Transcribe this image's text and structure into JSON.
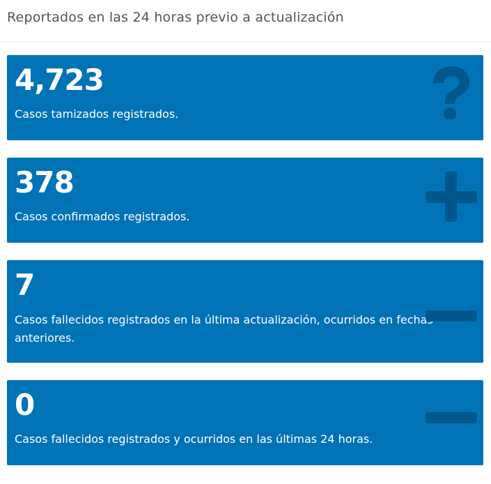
{
  "header": {
    "title": "Reportados en las 24 horas previo a actualización"
  },
  "colors": {
    "card_background": "#0073b7",
    "icon_tint": "#00578c",
    "header_text": "#555555"
  },
  "cards": [
    {
      "value": "4,723",
      "label": "Casos tamizados registrados.",
      "icon": "question-icon"
    },
    {
      "value": "378",
      "label": "Casos confirmados registrados.",
      "icon": "plus-icon"
    },
    {
      "value": "7",
      "label": "Casos fallecidos registrados en la última actualización, ocurridos en fechas anteriores.",
      "icon": "minus-icon"
    },
    {
      "value": "0",
      "label": "Casos fallecidos registrados y ocurridos en las últimas 24 horas.",
      "icon": "minus-icon"
    }
  ]
}
